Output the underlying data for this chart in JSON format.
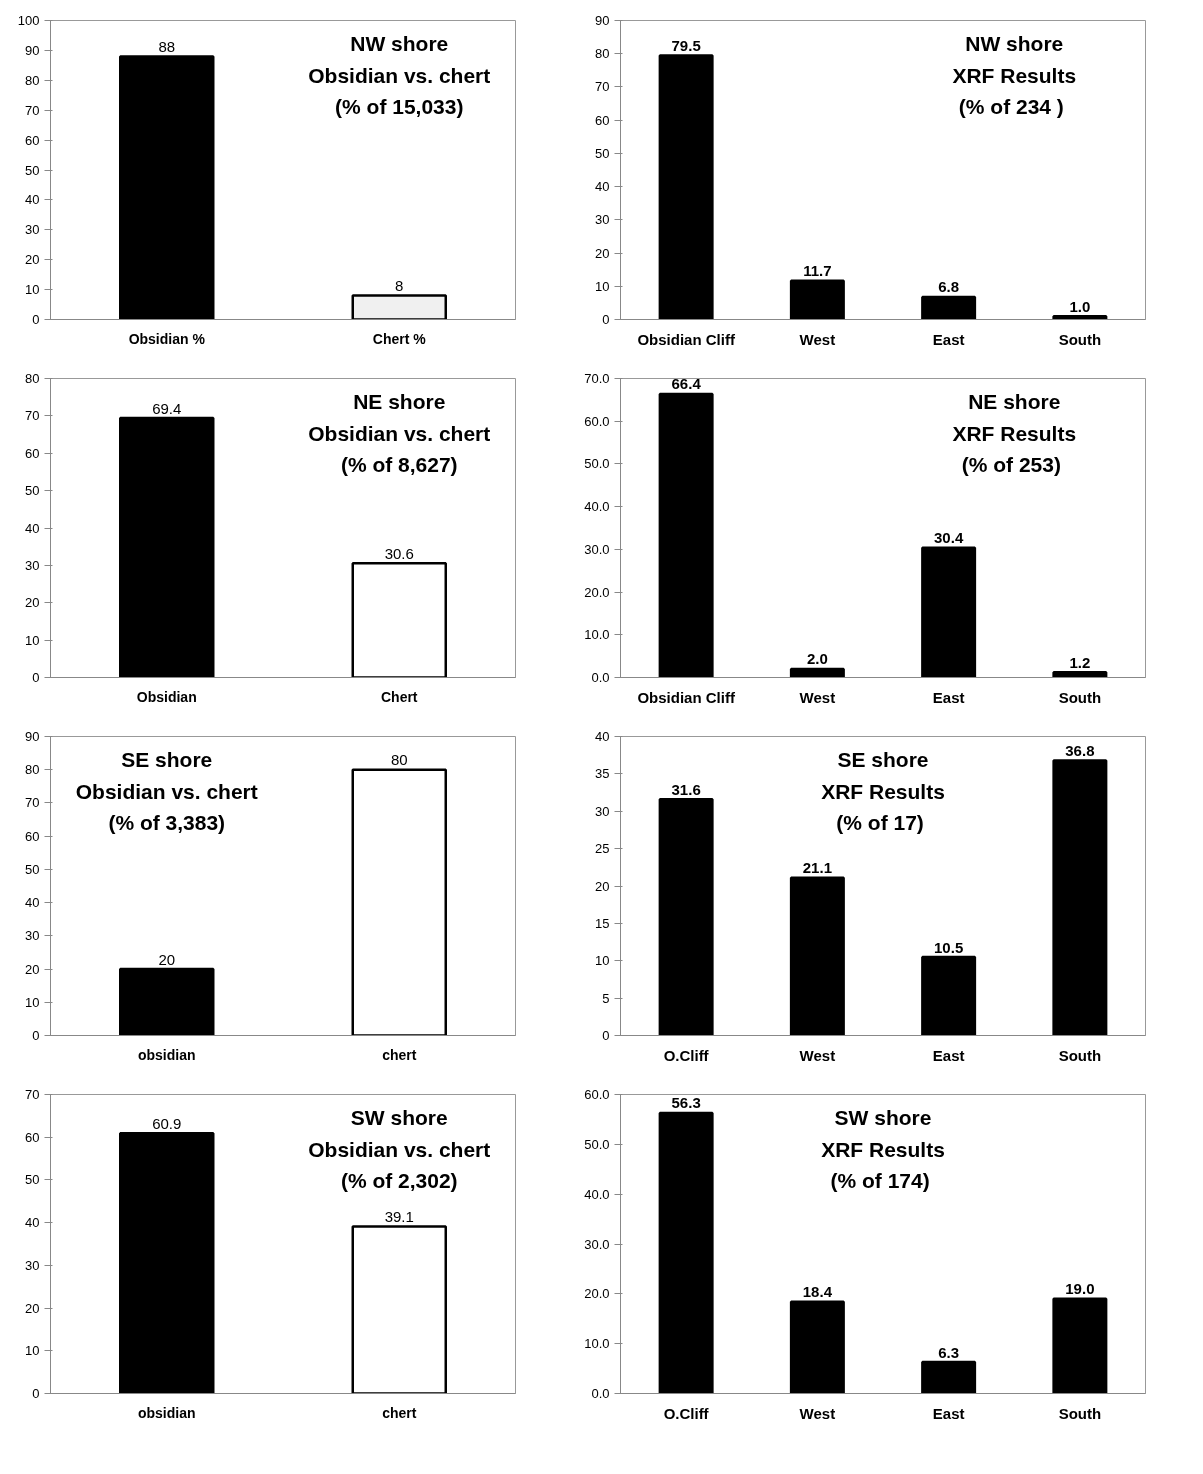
{
  "chart_data": [
    {
      "type": "bar",
      "title": "NW shore\nObsidian vs. chert\n(% of 15,033)",
      "categories": [
        "Obsidian %",
        "Chert %"
      ],
      "values": [
        88,
        8
      ],
      "colors": [
        "#000000",
        "#f0f0f0"
      ],
      "ylim": [
        0,
        100
      ],
      "yticks": [
        0,
        10,
        20,
        30,
        40,
        50,
        60,
        70,
        80,
        90,
        100
      ],
      "data_labels": true
    },
    {
      "type": "bar",
      "title": "NW shore\nXRF Results\n(%  of 234 )",
      "categories": [
        "Obsidian Cliff",
        "West",
        "East",
        "South"
      ],
      "values": [
        79.5,
        11.7,
        6.8,
        1.0
      ],
      "value_labels": [
        "79.5",
        "11.7",
        "6.8",
        "1.0"
      ],
      "colors": [
        "#000000",
        "#000000",
        "#000000",
        "#000000"
      ],
      "ylim": [
        0,
        90
      ],
      "yticks": [
        0,
        10,
        20,
        30,
        40,
        50,
        60,
        70,
        80,
        90
      ]
    },
    {
      "type": "bar",
      "title": "NE shore\nObsidian vs. chert\n(% of 8,627)",
      "categories": [
        "Obsidian",
        "Chert"
      ],
      "values": [
        69.4,
        30.6
      ],
      "colors": [
        "#000000",
        "#ffffff"
      ],
      "ylim": [
        0,
        80
      ],
      "yticks": [
        0,
        10,
        20,
        30,
        40,
        50,
        60,
        70,
        80
      ],
      "data_labels": true
    },
    {
      "type": "bar",
      "title": "NE shore\nXRF Results\n(%  of 253)",
      "categories": [
        "Obsidian Cliff",
        "West",
        "East",
        "South"
      ],
      "values": [
        66.4,
        2.0,
        30.4,
        1.2
      ],
      "value_labels": [
        "66.4",
        "2.0",
        "30.4",
        "1.2"
      ],
      "colors": [
        "#000000",
        "#000000",
        "#000000",
        "#000000"
      ],
      "ylim": [
        0,
        70
      ],
      "yticks": [
        {
          "value": 0,
          "label": "0.0"
        },
        {
          "value": 10,
          "label": "10.0"
        },
        {
          "value": 20,
          "label": "20.0"
        },
        {
          "value": 30,
          "label": "30.0"
        },
        {
          "value": 40,
          "label": "40.0"
        },
        {
          "value": 50,
          "label": "50.0"
        },
        {
          "value": 60,
          "label": "60.0"
        },
        {
          "value": 70,
          "label": "70.0"
        }
      ]
    },
    {
      "type": "bar",
      "title": "SE shore\nObsidian vs. chert\n(% of 3,383)",
      "categories": [
        "obsidian",
        "chert"
      ],
      "values": [
        20,
        80
      ],
      "colors": [
        "#000000",
        "#ffffff"
      ],
      "ylim": [
        0,
        90
      ],
      "yticks": [
        0,
        10,
        20,
        30,
        40,
        50,
        60,
        70,
        80,
        90
      ],
      "data_labels": true
    },
    {
      "type": "bar",
      "title": "SE shore\nXRF Results\n(%  of 17)",
      "categories": [
        "O.Cliff",
        "West",
        "East",
        "South"
      ],
      "values": [
        31.6,
        21.1,
        10.5,
        36.8
      ],
      "colors": [
        "#000000",
        "#000000",
        "#000000",
        "#000000"
      ],
      "ylim": [
        0,
        40
      ],
      "yticks": [
        0,
        5,
        10,
        15,
        20,
        25,
        30,
        35,
        40
      ],
      "data_labels": true
    },
    {
      "type": "bar",
      "title": "SW shore\nObsidian vs. chert\n(% of 2,302)",
      "categories": [
        "obsidian",
        "chert"
      ],
      "values": [
        60.9,
        39.1
      ],
      "colors": [
        "#000000",
        "#ffffff"
      ],
      "ylim": [
        0,
        70
      ],
      "yticks": [
        0,
        10,
        20,
        30,
        40,
        50,
        60,
        70
      ],
      "data_labels": true
    },
    {
      "type": "bar",
      "title": "SW shore\nXRF Results\n(%  of 174)",
      "categories": [
        "O.Cliff",
        "West",
        "East",
        "South"
      ],
      "values": [
        56.3,
        18.4,
        6.3,
        19.0
      ],
      "value_labels": [
        "56.3",
        "18.4",
        "6.3",
        "19.0"
      ],
      "colors": [
        "#000000",
        "#000000",
        "#000000",
        "#000000"
      ],
      "ylim": [
        0,
        60
      ],
      "yticks": [
        {
          "value": 0,
          "label": "0.0"
        },
        {
          "value": 10,
          "label": "10.0"
        },
        {
          "value": 20,
          "label": "20.0"
        },
        {
          "value": 30,
          "label": "30.0"
        },
        {
          "value": 40,
          "label": "40.0"
        },
        {
          "value": 50,
          "label": "50.0"
        },
        {
          "value": 60,
          "label": "60.0"
        }
      ]
    }
  ]
}
